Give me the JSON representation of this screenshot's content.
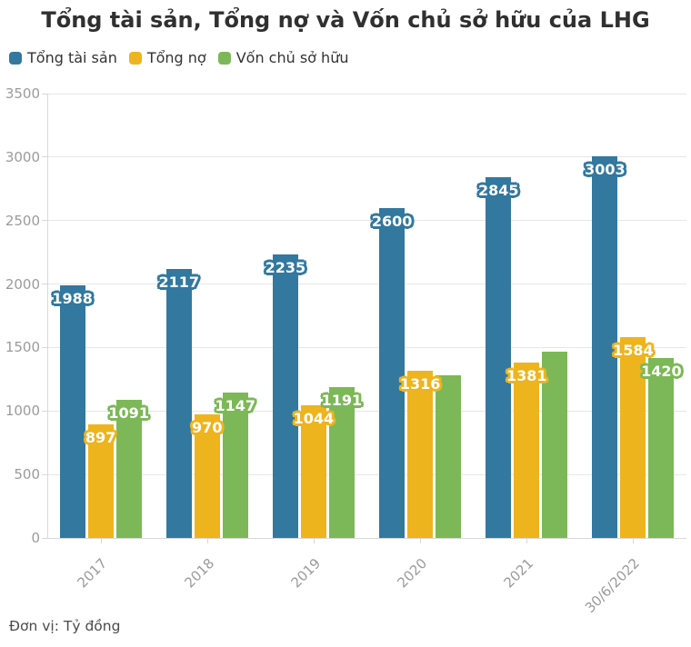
{
  "chart_data": {
    "type": "bar",
    "title": "Tổng tài sản, Tổng nợ và Vốn chủ sở hữu của LHG",
    "unit_note": "Đơn vị: Tỷ đồng",
    "categories": [
      "2017",
      "2018",
      "2019",
      "2020",
      "2021",
      "30/6/2022"
    ],
    "series": [
      {
        "name": "Tổng tài sản",
        "color": "#33789f",
        "values": [
          1988,
          2117,
          2235,
          2600,
          2845,
          3003
        ],
        "labels": [
          "1988",
          "2117",
          "2235",
          "2600",
          "2845",
          "3003"
        ]
      },
      {
        "name": "Tổng nợ",
        "color": "#eeb41e",
        "values": [
          897,
          970,
          1044,
          1316,
          1381,
          1584
        ],
        "labels": [
          "897",
          "970",
          "1044",
          "1316",
          "1381",
          "1584"
        ]
      },
      {
        "name": "Vốn chủ sở hữu",
        "color": "#7cb857",
        "values": [
          1091,
          1147,
          1191,
          1284,
          1464,
          1420
        ],
        "labels": [
          "1091",
          "1147",
          "1191",
          "",
          "",
          "1420"
        ]
      }
    ],
    "ylim": [
      0,
      3500
    ],
    "yticks": [
      0,
      500,
      1000,
      1500,
      2000,
      2500,
      3000,
      3500
    ],
    "grid": true,
    "legend_position": "top-left",
    "colors": {
      "grid": "#e7e7e7",
      "axis": "#d8d8d8",
      "tick_labels": "#9b9b9b",
      "title": "#303030",
      "legend_text": "#333333",
      "footer_text": "#4a4a4a",
      "background": "#ffffff"
    }
  }
}
